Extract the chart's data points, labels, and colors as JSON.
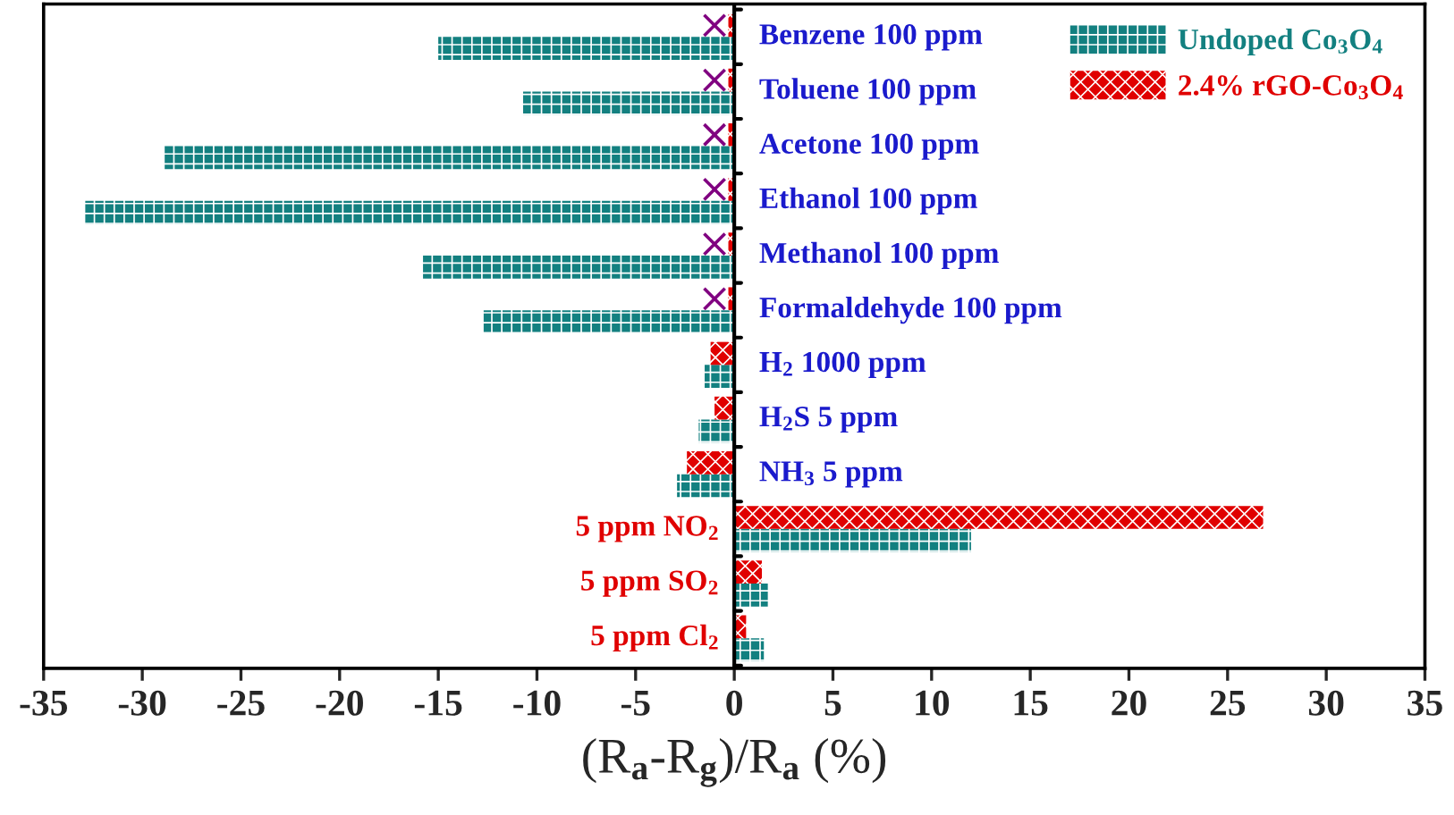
{
  "chart_data": {
    "type": "bar",
    "orientation": "horizontal",
    "categories": [
      "Benzene 100 ppm",
      "Toluene 100 ppm",
      "Acetone 100 ppm",
      "Ethanol 100 ppm",
      "Methanol 100 ppm",
      "Formaldehyde 100 ppm",
      "H$_{2}$ 1000 ppm",
      "H$_{2}$S 5 ppm",
      "NH$_{3}$ 5 ppm",
      "5 ppm NO$_{2}$",
      "5 ppm SO$_{2}$",
      "5 ppm Cl$_{2}$"
    ],
    "series": [
      {
        "name": "Undoped Co$_{3}$O$_{4}$",
        "color": "#138080",
        "values": [
          -15,
          -10.7,
          -28.9,
          -32.9,
          -15.8,
          -12.7,
          -1.5,
          -1.8,
          -2.9,
          12,
          1.7,
          1.5
        ]
      },
      {
        "name": "2.4% rGO-Co$_{3}$O$_{4}$",
        "color": "#e00000",
        "values": [
          -0.3,
          -0.3,
          -0.3,
          -0.3,
          -0.3,
          -0.3,
          -1.2,
          -1,
          -2.4,
          26.8,
          1.4,
          0.6
        ]
      },
      {
        "type": "scatter",
        "color": "#800080",
        "values": [
          -1,
          -1,
          -1,
          -1,
          -1,
          -1,
          null,
          null,
          null,
          null,
          null,
          null
        ]
      }
    ],
    "marker": "cross",
    "xlabel": "(R$_{a}$-R$_{g}$)/R$_{a}$ (%)",
    "xlim": [
      -35,
      35
    ],
    "xticks": [
      -35,
      -30,
      -25,
      -20,
      -15,
      -10,
      -5,
      0,
      5,
      10,
      15,
      20,
      25,
      30,
      35
    ],
    "tick_labels": "x",
    "legend": "top right",
    "grid": false
  }
}
